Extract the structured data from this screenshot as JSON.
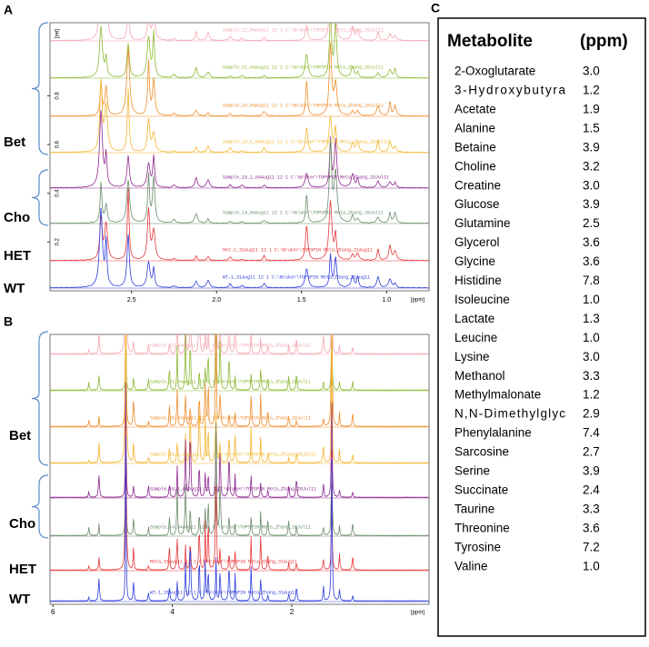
{
  "panels": [
    {
      "label": "A",
      "xlim": [
        2.98,
        0.75
      ],
      "xticks": [
        2.5,
        {
          "value": 2.0,
          "label": "2.0"
        },
        1.5,
        {
          "value": 1.0,
          "label": "1.0"
        }
      ],
      "x_unit": "[ppm]",
      "ylim": [
        0,
        1.1
      ],
      "yticks": [
        0.2,
        0.4,
        0.6,
        0.8
      ],
      "y_unit": "[rel]",
      "traces": [
        {
          "label": "Sample_22_04Aug11 12 1 C:\\Bruker\\TOPSPIN Meta_Zhang_28Jul11",
          "color": "#f4a6b0"
        },
        {
          "label": "Sample_21_04Aug11 12 1 C:\\Bruker\\TOPSPIN Meta_Zhang_28Jul11",
          "color": "#8cb832"
        },
        {
          "label": "Sample_20_04Aug11 12 1 C:\\Bruker\\TOPSPIN Meta_Zhang_28Jul11",
          "color": "#f08c2c"
        },
        {
          "label": "Sample_19_1_04Aug11 12 1 C:\\Bruker\\TOPSPIN Meta_Zhang_28Jul11",
          "color": "#f2b630"
        },
        {
          "label": "Sample_18_1_04Aug11 12 1 C:\\Bruker\\TOPSPIN Meta_Zhang_28Jul11",
          "color": "#8e2a8e"
        },
        {
          "label": "Sample_14_04Aug11 12 1 C:\\Bruker\\TOPSPIN Meta_Zhang_28Jul11",
          "color": "#6a8c6a"
        },
        {
          "label": "Het-1_31Aug11 12 1 C:\\Bruker\\TOPSPIN Meta_Zhang_31Aug11",
          "color": "#e8383a"
        },
        {
          "label": "WT-1_31Aug11 12 1 C:\\Bruker\\TOPSPIN Meta_Zhang_31Aug11",
          "color": "#2e3ed8"
        }
      ],
      "groups": [
        {
          "name": "Bet",
          "from": 0,
          "to": 3
        },
        {
          "name": "Cho",
          "from": 4,
          "to": 5
        },
        {
          "name": "HET",
          "from": 6,
          "to": 6
        },
        {
          "name": "WT",
          "from": 7,
          "to": 7
        }
      ]
    },
    {
      "label": "B",
      "xlim": [
        6.05,
        -0.3
      ],
      "xticks": [
        6,
        4,
        2
      ],
      "x_unit": "[ppm]",
      "traces": [
        {
          "label": "Sample_22_04Aug11 12 1 C:\\Bruker\\TOPSPIN Meta_Zhang_28Jul11",
          "color": "#f4a6b0"
        },
        {
          "label": "Sample_21_04Aug11 12 1 C:\\Bruker\\TOPSPIN Meta_Zhang_28Jul11",
          "color": "#8cb832"
        },
        {
          "label": "Sample_20_04Aug11 12 1 C:\\Bruker\\TOPSPIN Meta_Zhang_28Jul11",
          "color": "#f08c2c"
        },
        {
          "label": "Sample_19_1_04Aug11 12 1 C:\\Bruker\\TOPSPIN Meta_Zhang_28Jul11",
          "color": "#f2b630"
        },
        {
          "label": "Sample_18_1_04Aug11 12 1 C:\\Bruker\\TOPSPIN Meta_Zhang_28Jul11",
          "color": "#8e2a8e"
        },
        {
          "label": "Sample_14_04Aug11 12 1 C:\\Bruker\\TOPSPIN Meta_Zhang_28Jul11",
          "color": "#6a8c6a"
        },
        {
          "label": "Meta_31Aug11 12 1 C:\\Bruker\\TOPSPIN Meta_Zhang_31Aug11",
          "color": "#e8383a"
        },
        {
          "label": "WT-1_31Aug11 12 1 C:\\Bruker\\TOPSPIN Meta_Zhang_31Aug11",
          "color": "#2e3ed8"
        }
      ],
      "groups": [
        {
          "name": "Bet",
          "from": 0,
          "to": 3
        },
        {
          "name": "Cho",
          "from": 4,
          "to": 5
        },
        {
          "name": "HET",
          "from": 6,
          "to": 6
        },
        {
          "name": "WT",
          "from": 7,
          "to": 7
        }
      ]
    }
  ],
  "table": {
    "label": "C",
    "header": [
      "Metabolite",
      "(ppm)"
    ],
    "rows": [
      [
        "2-Oxoglutarate",
        "3.0"
      ],
      [
        "3-Hydroxybutyra",
        "1.2"
      ],
      [
        "Acetate",
        "1.9"
      ],
      [
        "Alanine",
        "1.5"
      ],
      [
        "Betaine",
        "3.9"
      ],
      [
        "Choline",
        "3.2"
      ],
      [
        "Creatine",
        "3.0"
      ],
      [
        "Glucose",
        "3.9"
      ],
      [
        "Glutamine",
        "2.5"
      ],
      [
        "Glycerol",
        "3.6"
      ],
      [
        "Glycine",
        "3.6"
      ],
      [
        "Histidine",
        "7.8"
      ],
      [
        "Isoleucine",
        "1.0"
      ],
      [
        "Lactate",
        "1.3"
      ],
      [
        "Leucine",
        "1.0"
      ],
      [
        "Lysine",
        "3.0"
      ],
      [
        "Methanol",
        "3.3"
      ],
      [
        "Methylmalonate",
        "1.2"
      ],
      [
        "N,N-Dimethylglyc",
        "2.9"
      ],
      [
        "Phenylalanine",
        "7.4"
      ],
      [
        "Sarcosine",
        "2.7"
      ],
      [
        "Serine",
        "3.9"
      ],
      [
        "Succinate",
        "2.4"
      ],
      [
        "Taurine",
        "3.3"
      ],
      [
        "Threonine",
        "3.6"
      ],
      [
        "Tyrosine",
        "7.2"
      ],
      [
        "Valine",
        "1.0"
      ]
    ]
  }
}
